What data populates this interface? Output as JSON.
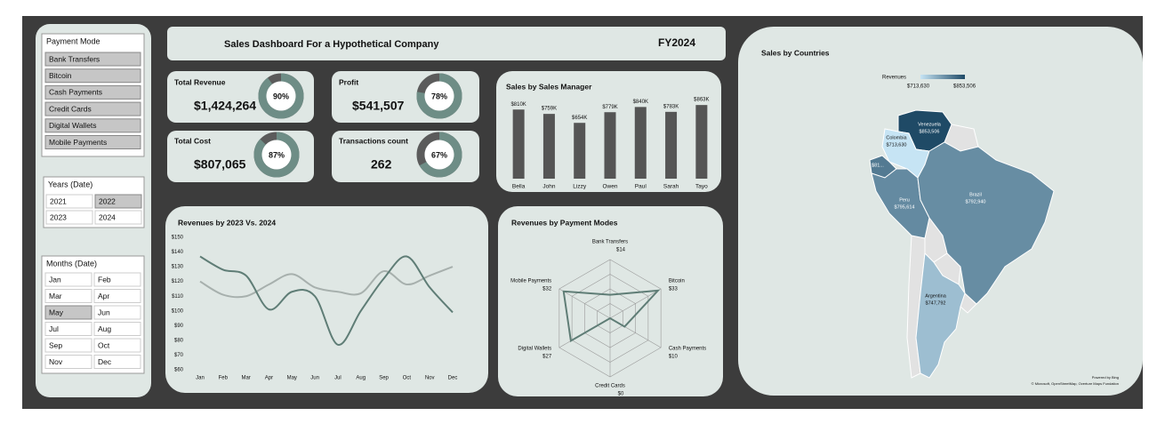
{
  "header": {
    "title": "Sales Dashboard For a Hypothetical Company",
    "fy": "FY2024"
  },
  "slicers": [
    {
      "title": "Payment Mode",
      "items": [
        "Bank Transfers",
        "Bitcoin",
        "Cash Payments",
        "Credit Cards",
        "Digital Wallets",
        "Mobile Payments"
      ],
      "selected": [
        0,
        1,
        2,
        3,
        4,
        5
      ]
    },
    {
      "title": "Years (Date)",
      "items": [
        "2021",
        "2022",
        "2023",
        "2024"
      ],
      "selected": [
        1
      ]
    },
    {
      "title": "Months (Date)",
      "items": [
        "Jan",
        "Feb",
        "Mar",
        "Apr",
        "May",
        "Jun",
        "Jul",
        "Aug",
        "Sep",
        "Oct",
        "Nov",
        "Dec"
      ],
      "selected": [
        4
      ]
    }
  ],
  "kpis": [
    {
      "title": "Total Revenue",
      "value": "$1,424,264",
      "percent": 90,
      "percent_label": "90%"
    },
    {
      "title": "Profit",
      "value": "$541,507",
      "percent": 78,
      "percent_label": "78%"
    },
    {
      "title": "Total Cost",
      "value": "$807,065",
      "percent": 87,
      "percent_label": "87%"
    },
    {
      "title": "Transactions count",
      "value": "262",
      "percent": 67,
      "percent_label": "67%"
    }
  ],
  "chart_data": [
    {
      "type": "bar",
      "title": "Sales by Sales Manager",
      "categories": [
        "Bella",
        "John",
        "Lizzy",
        "Owen",
        "Paul",
        "Sarah",
        "Tayo"
      ],
      "values": [
        810000,
        759000,
        654000,
        779000,
        840000,
        783000,
        863000
      ],
      "value_labels": [
        "$810K",
        "$759K",
        "$654K",
        "$779K",
        "$840K",
        "$783K",
        "$863K"
      ],
      "color": "#555555",
      "ylim": [
        0,
        1000000
      ]
    },
    {
      "type": "line",
      "title": "Revenues by 2023 Vs. 2024",
      "categories": [
        "Jan",
        "Feb",
        "Mar",
        "Apr",
        "May",
        "Jun",
        "Jul",
        "Aug",
        "Sep",
        "Oct",
        "Nov",
        "Dec"
      ],
      "series": [
        {
          "color": "#a7b0ad",
          "values": [
            120,
            111,
            110,
            118,
            125,
            116,
            113,
            112,
            127,
            118,
            124,
            130
          ]
        },
        {
          "color": "#5f7d76",
          "values": [
            137,
            128,
            124,
            101,
            113,
            110,
            77,
            100,
            122,
            137,
            116,
            99
          ]
        }
      ],
      "ylim": [
        60,
        150
      ],
      "yticks": [
        {
          "value": 60,
          "label": "$60"
        },
        {
          "value": 70,
          "label": "$70"
        },
        {
          "value": 80,
          "label": "$80"
        },
        {
          "value": 90,
          "label": "$90"
        },
        {
          "value": 100,
          "label": "$100"
        },
        {
          "value": 110,
          "label": "$110"
        },
        {
          "value": 120,
          "label": "$120"
        },
        {
          "value": 130,
          "label": "$130"
        },
        {
          "value": 140,
          "label": "$140"
        },
        {
          "value": 150,
          "label": "$150"
        }
      ]
    },
    {
      "type": "radar",
      "title": "Revenues by Payment Modes",
      "categories": [
        "Bank Transfers",
        "Bitcoin",
        "Cash Payments",
        "Credit Cards",
        "Digital Wallets",
        "Mobile Payments"
      ],
      "values": [
        14,
        33,
        10,
        0,
        27,
        32
      ],
      "value_labels": [
        "$14",
        "$33",
        "$10",
        "$0",
        "$27",
        "$32"
      ],
      "color": "#5f7d76",
      "rlim": [
        0,
        35
      ]
    },
    {
      "type": "map",
      "title": "Sales by Countries",
      "legend_title": "Revenues",
      "legend": {
        "min": 713630,
        "max": 853506,
        "min_label": "$713,630",
        "max_label": "$853,506"
      },
      "colors": [
        "#c6e4f4",
        "#1f4a66"
      ],
      "regions": [
        {
          "name": "Venezuela",
          "value": 853506,
          "label": "$853,506"
        },
        {
          "name": "Colombia",
          "value": 713630,
          "label": "$713,630"
        },
        {
          "value": 810000,
          "label": "$81..."
        },
        {
          "name": "Peru",
          "value": 795614,
          "label": "$795,614"
        },
        {
          "name": "Brazil",
          "value": 792940,
          "label": "$792,940"
        },
        {
          "name": "Argentina",
          "value": 747792,
          "label": "$747,792"
        }
      ],
      "attribution": [
        "Powered by Bing",
        "© Microsoft, OpenStreetMap, Overture Maps Fundation"
      ]
    }
  ]
}
